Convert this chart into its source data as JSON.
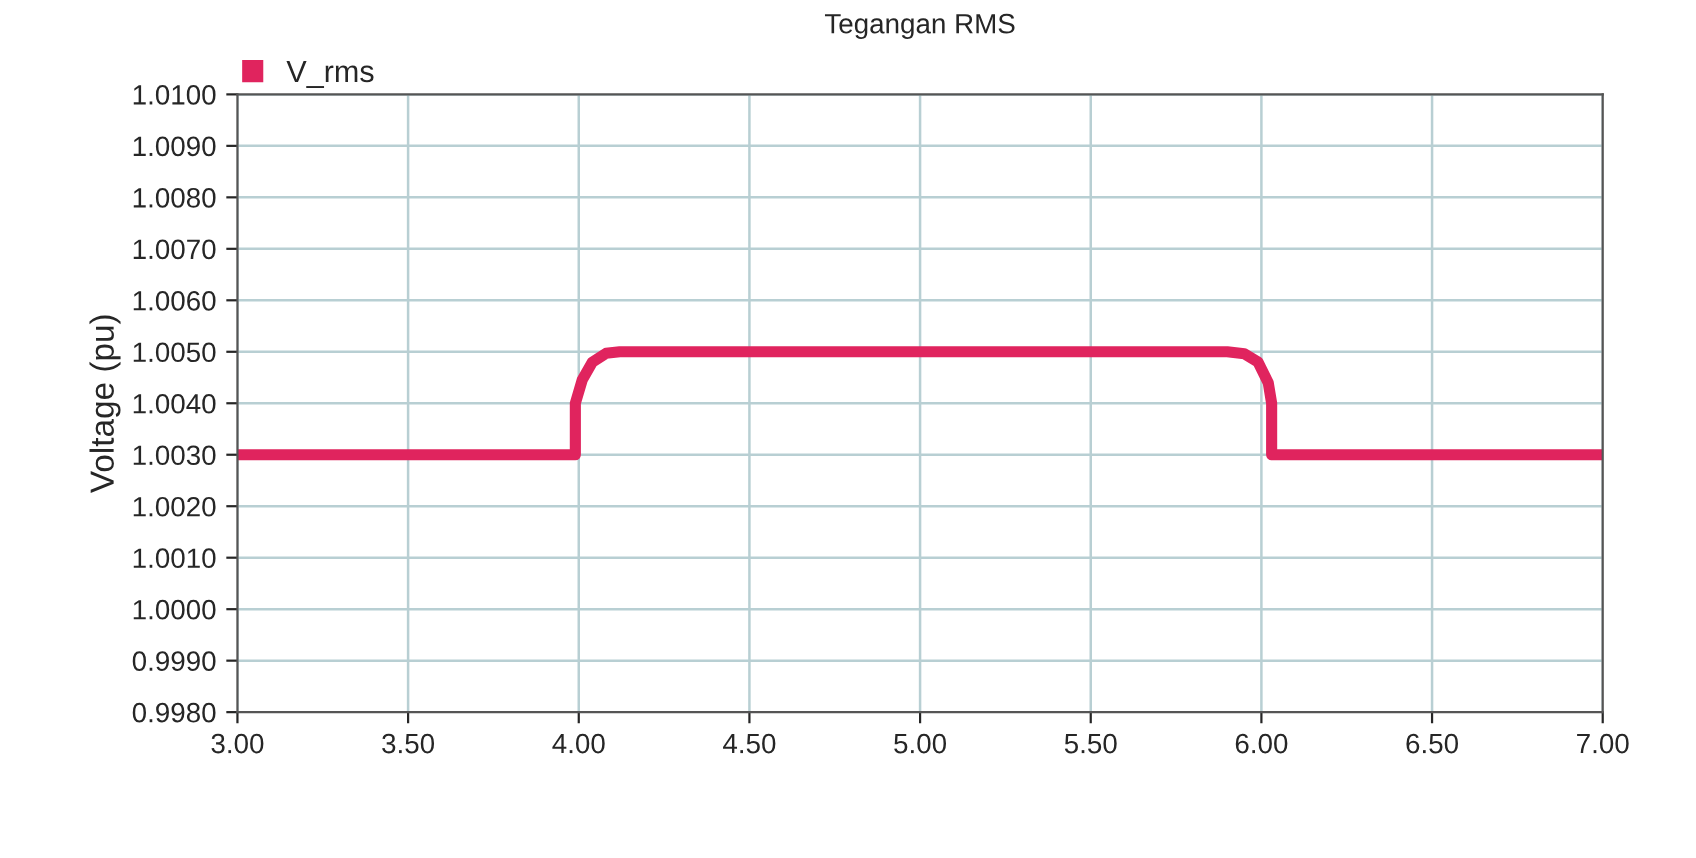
{
  "chart_data": {
    "type": "line",
    "title": "Tegangan RMS",
    "ylabel": "Voltage (pu)",
    "series": [
      {
        "name": "V_rms",
        "color": "#e0245e",
        "x": [
          3.0,
          3.99,
          3.99,
          4.01,
          4.04,
          4.08,
          4.12,
          5.9,
          5.95,
          5.99,
          6.02,
          6.03,
          6.03,
          7.0
        ],
        "values": [
          1.003,
          1.003,
          1.004,
          1.00445,
          1.0048,
          1.00497,
          1.005,
          1.005,
          1.00496,
          1.0048,
          1.0044,
          1.004,
          1.003,
          1.003
        ]
      }
    ],
    "xlim": [
      3.0,
      7.0
    ],
    "xticks": [
      {
        "value": 3.0,
        "label": "3.00"
      },
      {
        "value": 3.5,
        "label": "3.50"
      },
      {
        "value": 4.0,
        "label": "4.00"
      },
      {
        "value": 4.5,
        "label": "4.50"
      },
      {
        "value": 5.0,
        "label": "5.00"
      },
      {
        "value": 5.5,
        "label": "5.50"
      },
      {
        "value": 6.0,
        "label": "6.00"
      },
      {
        "value": 6.5,
        "label": "6.50"
      },
      {
        "value": 7.0,
        "label": "7.00"
      }
    ],
    "ylim": [
      0.998,
      1.01
    ],
    "yticks": [
      {
        "value": 0.998,
        "label": "0.9980"
      },
      {
        "value": 0.999,
        "label": "0.9990"
      },
      {
        "value": 1.0,
        "label": "1.0000"
      },
      {
        "value": 1.001,
        "label": "1.0010"
      },
      {
        "value": 1.002,
        "label": "1.0020"
      },
      {
        "value": 1.003,
        "label": "1.0030"
      },
      {
        "value": 1.004,
        "label": "1.0040"
      },
      {
        "value": 1.005,
        "label": "1.0050"
      },
      {
        "value": 1.006,
        "label": "1.0060"
      },
      {
        "value": 1.007,
        "label": "1.0070"
      },
      {
        "value": 1.008,
        "label": "1.0080"
      },
      {
        "value": 1.009,
        "label": "1.0090"
      },
      {
        "value": 1.01,
        "label": "1.0100"
      }
    ],
    "grid": true,
    "legend": "top left",
    "marker": "none",
    "line_style": "solid"
  }
}
